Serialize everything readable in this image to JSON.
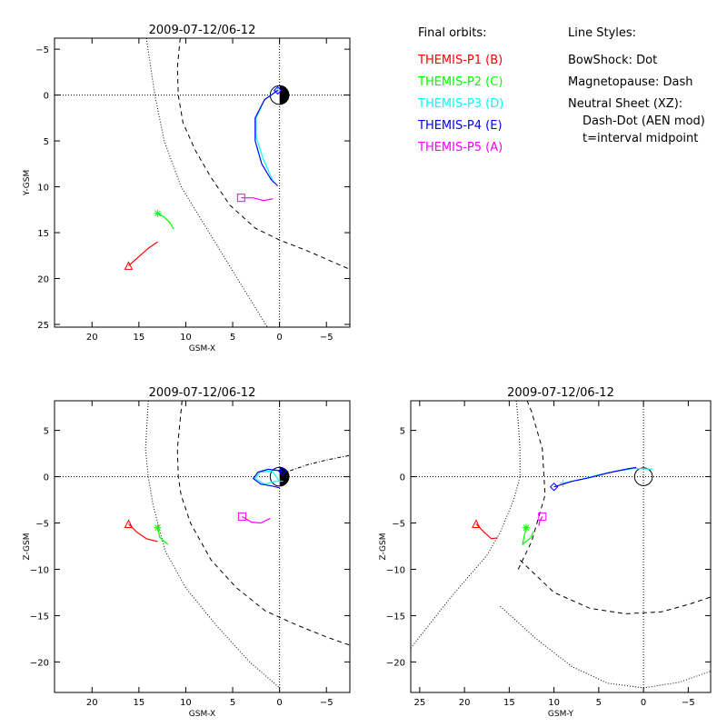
{
  "legend": {
    "orbits_title": "Final orbits:",
    "orbits": [
      {
        "label": "THEMIS-P1 (B)",
        "color": "#ff0000"
      },
      {
        "label": "THEMIS-P2 (C)",
        "color": "#00ff00"
      },
      {
        "label": "THEMIS-P3 (D)",
        "color": "#00ffff"
      },
      {
        "label": "THEMIS-P4 (E)",
        "color": "#0000ff"
      },
      {
        "label": "THEMIS-P5 (A)",
        "color": "#ff00ff"
      }
    ],
    "styles_title": "Line Styles:",
    "styles": [
      "BowShock: Dot",
      "Magnetopause: Dash",
      "Neutral Sheet (XZ):",
      "Dash-Dot (AEN mod)",
      "t=interval midpoint"
    ]
  },
  "chart_data": [
    {
      "type": "line",
      "title": "2009-07-12/06-12",
      "xlabel": "GSM-X",
      "ylabel": "Y-GSM",
      "xlim": [
        24,
        -7.5
      ],
      "ylim": [
        25.3,
        -6.2
      ],
      "xticks": [
        20,
        15,
        10,
        5,
        0,
        -5
      ],
      "yticks": [
        -5,
        0,
        5,
        10,
        15,
        20,
        25
      ],
      "earth": true,
      "series": [
        {
          "color": "#ff0000",
          "marker": "triangle",
          "points": [
            [
              16.1,
              18.6
            ],
            [
              15.0,
              17.6
            ],
            [
              14.0,
              16.7
            ],
            [
              13.0,
              16.0
            ]
          ]
        },
        {
          "color": "#00ff00",
          "marker": "star",
          "points": [
            [
              13.0,
              12.9
            ],
            [
              12.3,
              13.3
            ],
            [
              11.7,
              13.9
            ],
            [
              11.3,
              14.6
            ]
          ]
        },
        {
          "color": "#00ffff",
          "marker": "plus",
          "points": [
            [
              0.2,
              -0.5
            ],
            [
              1.6,
              0.5
            ],
            [
              2.5,
              2.5
            ],
            [
              2.5,
              4.5
            ],
            [
              1.8,
              6.8
            ],
            [
              0.6,
              9.6
            ]
          ]
        },
        {
          "color": "#0000ff",
          "marker": "diamond",
          "points": [
            [
              0.2,
              -0.5
            ],
            [
              1.6,
              0.5
            ],
            [
              2.6,
              2.5
            ],
            [
              2.6,
              5.0
            ],
            [
              1.9,
              7.5
            ],
            [
              0.9,
              9.2
            ],
            [
              0.2,
              9.9
            ]
          ]
        },
        {
          "color": "#ff00ff",
          "marker": "square",
          "points": [
            [
              4.1,
              11.2
            ],
            [
              2.8,
              11.2
            ],
            [
              1.7,
              11.5
            ],
            [
              0.7,
              11.3
            ]
          ]
        }
      ],
      "bowshock": [
        [
          14.2,
          -6.2
        ],
        [
          13.3,
          0
        ],
        [
          12.3,
          5
        ],
        [
          10.5,
          10
        ],
        [
          7.5,
          15
        ],
        [
          4.5,
          20
        ],
        [
          1.3,
          25.3
        ]
      ],
      "magnetopause": [
        [
          10.6,
          -6.2
        ],
        [
          10.9,
          -3
        ],
        [
          10.8,
          0
        ],
        [
          10.3,
          3
        ],
        [
          9.0,
          6
        ],
        [
          7.3,
          9
        ],
        [
          5.3,
          12
        ],
        [
          2.6,
          14.5
        ],
        [
          0,
          15.8
        ],
        [
          -3,
          17.0
        ],
        [
          -7.5,
          19.0
        ]
      ],
      "neutral_sheet": []
    },
    {
      "type": "line",
      "title": "2009-07-12/06-12",
      "xlabel": "GSM-X",
      "ylabel": "Z-GSM",
      "xlim": [
        24,
        -7.5
      ],
      "ylim": [
        -23.3,
        8.2
      ],
      "xticks": [
        20,
        15,
        10,
        5,
        0,
        -5
      ],
      "yticks": [
        5,
        0,
        -5,
        -10,
        -15,
        -20
      ],
      "earth": true,
      "series": [
        {
          "color": "#ff0000",
          "marker": "triangle",
          "points": [
            [
              16.1,
              -5.1
            ],
            [
              15.2,
              -6.0
            ],
            [
              14.2,
              -6.7
            ],
            [
              13.0,
              -7.0
            ]
          ]
        },
        {
          "color": "#00ff00",
          "marker": "star",
          "points": [
            [
              13.0,
              -5.5
            ],
            [
              12.8,
              -6.5
            ],
            [
              12.3,
              -7.0
            ],
            [
              11.9,
              -7.3
            ]
          ]
        },
        {
          "color": "#00ffff",
          "marker": "plus",
          "points": [
            [
              0.0,
              -0.5
            ],
            [
              0.8,
              0.6
            ],
            [
              2.1,
              0.5
            ],
            [
              2.6,
              -0.2
            ],
            [
              1.6,
              -0.8
            ],
            [
              0.4,
              -0.5
            ]
          ]
        },
        {
          "color": "#0000ff",
          "marker": "diamond",
          "points": [
            [
              -0.3,
              0.6
            ],
            [
              1.2,
              0.8
            ],
            [
              2.3,
              0.5
            ],
            [
              2.8,
              -0.2
            ],
            [
              2.0,
              -0.8
            ],
            [
              0.8,
              -1.0
            ],
            [
              0.0,
              -1.2
            ]
          ]
        },
        {
          "color": "#ff00ff",
          "marker": "square",
          "points": [
            [
              4.0,
              -4.3
            ],
            [
              3.0,
              -4.9
            ],
            [
              2.0,
              -5.0
            ],
            [
              1.0,
              -4.5
            ]
          ]
        }
      ],
      "bowshock": [
        [
          14.0,
          8.2
        ],
        [
          14.3,
          3
        ],
        [
          14.0,
          0
        ],
        [
          13.5,
          -3
        ],
        [
          12.2,
          -8
        ],
        [
          10.0,
          -12
        ],
        [
          6.8,
          -16
        ],
        [
          3.2,
          -20
        ],
        [
          0,
          -22.8
        ]
      ],
      "magnetopause": [
        [
          10.4,
          8.2
        ],
        [
          10.9,
          3
        ],
        [
          10.8,
          0
        ],
        [
          10.5,
          -2
        ],
        [
          9.5,
          -5
        ],
        [
          7.3,
          -9
        ],
        [
          4.6,
          -12
        ],
        [
          1.5,
          -14.5
        ],
        [
          -1.8,
          -16.0
        ],
        [
          -5,
          -17.3
        ],
        [
          -7.5,
          -18.2
        ]
      ],
      "neutral_sheet": [
        [
          0.5,
          0.0
        ],
        [
          -1,
          0.6
        ],
        [
          -3,
          1.3
        ],
        [
          -5,
          1.8
        ],
        [
          -7.5,
          2.3
        ]
      ]
    },
    {
      "type": "line",
      "title": "2009-07-12/06-12",
      "xlabel": "GSM-Y",
      "ylabel": "Z-GSM",
      "xlim": [
        26,
        -7.5
      ],
      "ylim": [
        -23.3,
        8.2
      ],
      "xticks": [
        25,
        20,
        15,
        10,
        5,
        0,
        -5
      ],
      "yticks": [
        5,
        0,
        -5,
        -10,
        -15,
        -20
      ],
      "earth": false,
      "series": [
        {
          "color": "#ff0000",
          "marker": "triangle",
          "points": [
            [
              18.7,
              -5.1
            ],
            [
              17.8,
              -6.0
            ],
            [
              17.0,
              -6.7
            ],
            [
              16.3,
              -6.6
            ]
          ]
        },
        {
          "color": "#00ff00",
          "marker": "star",
          "points": [
            [
              13.1,
              -5.5
            ],
            [
              13.3,
              -6.3
            ],
            [
              13.5,
              -7.3
            ],
            [
              12.6,
              -6.6
            ],
            [
              12.3,
              -5.9
            ]
          ]
        },
        {
          "color": "#00ffff",
          "marker": "plus",
          "points": [
            [
              9.0,
              -0.7
            ],
            [
              7.0,
              -0.3
            ],
            [
              5.0,
              0.2
            ],
            [
              3.0,
              0.6
            ],
            [
              1.0,
              0.9
            ],
            [
              -1.0,
              0.8
            ]
          ]
        },
        {
          "color": "#0000ff",
          "marker": "diamond",
          "points": [
            [
              10.0,
              -1.1
            ],
            [
              8.0,
              -0.5
            ],
            [
              6.0,
              -0.1
            ],
            [
              4.0,
              0.4
            ],
            [
              2.0,
              0.8
            ],
            [
              0.8,
              1.0
            ]
          ]
        },
        {
          "color": "#ff00ff",
          "marker": "square",
          "points": [
            [
              11.3,
              -4.3
            ],
            [
              11.6,
              -4.8
            ],
            [
              11.7,
              -5.3
            ]
          ]
        }
      ],
      "bowshock": [
        [
          26,
          -18.5
        ],
        [
          21.5,
          -13.0
        ],
        [
          17.5,
          -8.5
        ],
        [
          16.0,
          -6.0
        ],
        [
          14.5,
          -2.5
        ],
        [
          13.8,
          0
        ],
        [
          13.8,
          3
        ],
        [
          14.0,
          6
        ],
        [
          14.2,
          8.2
        ]
      ],
      "magnetopause": [
        [
          14.0,
          -10.0
        ],
        [
          12.5,
          -7.0
        ],
        [
          11.0,
          -2.0
        ],
        [
          11.3,
          3
        ],
        [
          12.5,
          7
        ],
        [
          13.0,
          8.2
        ]
      ],
      "neutral_sheet": [],
      "extra_curves": [
        {
          "style": "dot",
          "points": [
            [
              16,
              -14.0
            ],
            [
              12,
              -17.5
            ],
            [
              8,
              -20.5
            ],
            [
              4,
              -22.3
            ],
            [
              0,
              -22.8
            ],
            [
              -4,
              -22.2
            ],
            [
              -7.5,
              -21.0
            ]
          ]
        },
        {
          "style": "dash",
          "points": [
            [
              13.8,
              -9.0
            ],
            [
              10,
              -12.5
            ],
            [
              6,
              -14.2
            ],
            [
              2,
              -14.8
            ],
            [
              -2,
              -14.6
            ],
            [
              -5,
              -13.8
            ],
            [
              -7.5,
              -13.0
            ]
          ]
        }
      ]
    }
  ]
}
